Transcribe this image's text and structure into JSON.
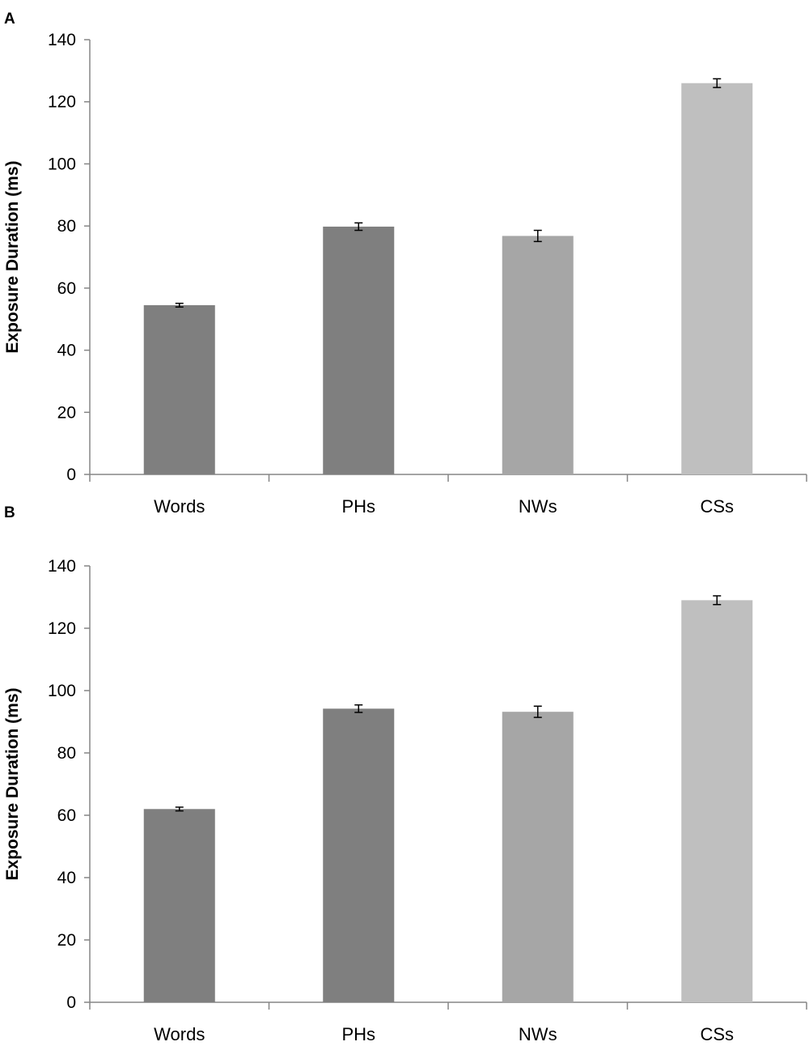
{
  "chart_data": [
    {
      "panel_label": "A",
      "type": "bar",
      "categories": [
        "Words",
        "PHs",
        "NWs",
        "CSs"
      ],
      "values": [
        54.5,
        79.8,
        76.8,
        126.0
      ],
      "errors": [
        0.6,
        1.2,
        1.8,
        1.4
      ],
      "bar_colors": [
        "#7f7f7f",
        "#7f7f7f",
        "#a6a6a6",
        "#bfbfbf"
      ],
      "ylabel": "Exposure Duration (ms)",
      "xlabel": "",
      "ylim": [
        0,
        140
      ],
      "yticks": [
        0,
        20,
        40,
        60,
        80,
        100,
        120,
        140
      ],
      "grid": false
    },
    {
      "panel_label": "B",
      "type": "bar",
      "categories": [
        "Words",
        "PHs",
        "NWs",
        "CSs"
      ],
      "values": [
        62.0,
        94.2,
        93.2,
        129.0
      ],
      "errors": [
        0.6,
        1.2,
        1.8,
        1.4
      ],
      "bar_colors": [
        "#7f7f7f",
        "#7f7f7f",
        "#a6a6a6",
        "#bfbfbf"
      ],
      "ylabel": "Exposure Duration (ms)",
      "xlabel": "",
      "ylim": [
        0,
        140
      ],
      "yticks": [
        0,
        20,
        40,
        60,
        80,
        100,
        120,
        140
      ],
      "grid": false
    }
  ]
}
